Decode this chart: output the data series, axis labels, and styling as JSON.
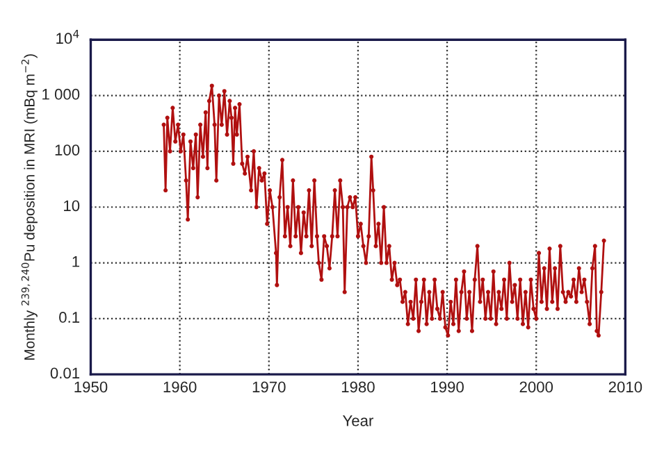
{
  "chart_data": {
    "type": "line",
    "xlabel": "Year",
    "ylabel": "Monthly $^{239,240}$Pu deposition in MRI (mBq m$^{−2}$)",
    "log": "y",
    "grid": true,
    "marker": "circle",
    "line_style": "solid",
    "xlim": [
      1950,
      2010
    ],
    "xticks": [
      1950,
      1960,
      1970,
      1980,
      1990,
      2000,
      2010
    ],
    "ylim": [
      0.01,
      10000
    ],
    "yticks": [
      {
        "value": 0.01,
        "label": "0.01"
      },
      {
        "value": 0.1,
        "label": "0.1"
      },
      {
        "value": 1,
        "label": "1"
      },
      {
        "value": 10,
        "label": "10"
      },
      {
        "value": 100,
        "label": "100"
      },
      {
        "value": 1000,
        "label": "1 000"
      },
      {
        "value": 10000,
        "label": "10$^{4}$"
      }
    ],
    "x": [
      1958.2,
      1958.4,
      1958.6,
      1958.9,
      1959.2,
      1959.5,
      1959.8,
      1960.1,
      1960.4,
      1960.7,
      1960.9,
      1961.2,
      1961.5,
      1961.8,
      1962.0,
      1962.3,
      1962.6,
      1962.9,
      1963.1,
      1963.3,
      1963.6,
      1963.9,
      1964.1,
      1964.4,
      1964.7,
      1965.0,
      1965.3,
      1965.6,
      1965.8,
      1966.0,
      1966.2,
      1966.4,
      1966.7,
      1967.0,
      1967.3,
      1967.6,
      1968.0,
      1968.3,
      1968.6,
      1968.9,
      1969.2,
      1969.5,
      1969.8,
      1970.1,
      1970.4,
      1970.8,
      1970.9,
      1971.2,
      1971.5,
      1971.8,
      1972.1,
      1972.4,
      1972.7,
      1973.0,
      1973.3,
      1973.6,
      1973.9,
      1974.2,
      1974.5,
      1974.8,
      1975.1,
      1975.4,
      1975.6,
      1975.9,
      1976.2,
      1976.5,
      1976.8,
      1977.1,
      1977.4,
      1977.7,
      1978.0,
      1978.3,
      1978.5,
      1978.8,
      1979.1,
      1979.4,
      1979.7,
      1980.0,
      1980.3,
      1980.6,
      1980.9,
      1981.2,
      1981.5,
      1981.7,
      1982.0,
      1982.3,
      1982.6,
      1982.9,
      1983.2,
      1983.5,
      1983.8,
      1984.1,
      1984.4,
      1984.7,
      1985.0,
      1985.3,
      1985.6,
      1985.9,
      1986.2,
      1986.5,
      1986.8,
      1987.1,
      1987.4,
      1987.7,
      1988.0,
      1988.3,
      1988.6,
      1988.9,
      1989.2,
      1989.5,
      1989.8,
      1990.1,
      1990.4,
      1990.7,
      1991.0,
      1991.3,
      1991.6,
      1991.9,
      1992.2,
      1992.5,
      1992.8,
      1993.1,
      1993.4,
      1993.7,
      1994.0,
      1994.3,
      1994.6,
      1994.9,
      1995.2,
      1995.5,
      1995.8,
      1996.1,
      1996.4,
      1996.7,
      1997.0,
      1997.3,
      1997.6,
      1997.9,
      1998.2,
      1998.5,
      1998.8,
      1999.1,
      1999.4,
      1999.7,
      2000.0,
      2000.3,
      2000.6,
      2000.9,
      2001.2,
      2001.5,
      2001.8,
      2002.1,
      2002.4,
      2002.7,
      2003.0,
      2003.3,
      2003.6,
      2003.9,
      2004.2,
      2004.5,
      2004.8,
      2005.1,
      2005.4,
      2005.7,
      2006.0,
      2006.3,
      2006.6,
      2006.8,
      2007.0,
      2007.3,
      2007.6
    ],
    "series": [
      {
        "color": "#b01010",
        "values": [
          300,
          20,
          400,
          100,
          600,
          150,
          300,
          100,
          200,
          30,
          6,
          150,
          50,
          200,
          15,
          300,
          80,
          500,
          50,
          800,
          1500,
          300,
          30,
          1000,
          300,
          1200,
          200,
          800,
          400,
          60,
          600,
          200,
          700,
          60,
          40,
          80,
          20,
          100,
          10,
          50,
          30,
          40,
          5,
          20,
          10,
          1.5,
          0.4,
          15,
          70,
          3,
          10,
          2,
          30,
          3,
          10,
          1.5,
          8,
          3,
          20,
          2,
          30,
          3,
          1,
          0.5,
          3,
          2,
          0.8,
          3,
          20,
          3,
          30,
          10,
          0.3,
          10,
          15,
          10,
          15,
          3,
          5,
          2,
          1,
          3,
          80,
          20,
          2,
          5,
          1,
          10,
          1,
          2,
          0.5,
          1,
          0.4,
          0.5,
          0.2,
          0.3,
          0.08,
          0.2,
          0.1,
          0.5,
          0.06,
          0.2,
          0.5,
          0.08,
          0.3,
          0.1,
          0.5,
          0.15,
          0.1,
          0.3,
          0.07,
          0.05,
          0.2,
          0.08,
          0.5,
          0.06,
          0.3,
          0.7,
          0.1,
          0.3,
          0.06,
          0.5,
          2,
          0.2,
          0.5,
          0.1,
          0.3,
          0.1,
          0.7,
          0.08,
          0.3,
          0.15,
          0.5,
          0.1,
          1,
          0.2,
          0.4,
          0.1,
          0.5,
          0.08,
          0.3,
          0.07,
          0.5,
          0.15,
          0.1,
          1.5,
          0.2,
          0.8,
          0.15,
          1.8,
          0.2,
          0.8,
          0.15,
          2,
          0.3,
          0.2,
          0.3,
          0.25,
          0.5,
          0.2,
          0.8,
          0.3,
          0.5,
          0.2,
          0.08,
          0.8,
          2,
          0.06,
          0.05,
          0.3,
          2.5
        ]
      }
    ]
  }
}
